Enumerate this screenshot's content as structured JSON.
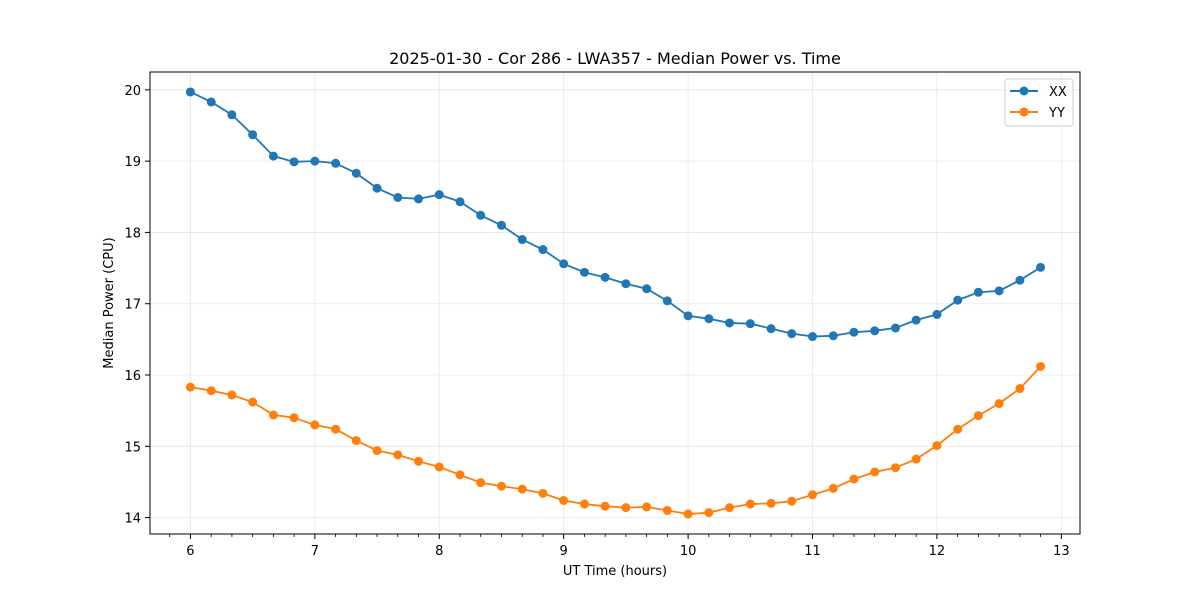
{
  "chart_data": {
    "type": "line",
    "title": "2025-01-30 - Cor 286 - LWA357 - Median Power vs. Time",
    "xlabel": "UT Time (hours)",
    "ylabel": "Median Power (CPU)",
    "xlim": [
      5.675,
      13.15
    ],
    "ylim": [
      13.77,
      20.25
    ],
    "xticks": [
      6,
      7,
      8,
      9,
      10,
      11,
      12,
      13
    ],
    "xtick_labels": [
      "6",
      "7",
      "8",
      "9",
      "10",
      "11",
      "12",
      "13"
    ],
    "yticks": [
      14,
      15,
      16,
      17,
      18,
      19,
      20
    ],
    "ytick_labels": [
      "14",
      "15",
      "16",
      "17",
      "18",
      "19",
      "20"
    ],
    "grid": true,
    "legend_position": "top-right",
    "x": [
      6.0,
      6.167,
      6.333,
      6.5,
      6.667,
      6.833,
      7.0,
      7.167,
      7.333,
      7.5,
      7.667,
      7.833,
      8.0,
      8.167,
      8.333,
      8.5,
      8.667,
      8.833,
      9.0,
      9.167,
      9.333,
      9.5,
      9.667,
      9.833,
      10.0,
      10.167,
      10.333,
      10.5,
      10.667,
      10.833,
      11.0,
      11.167,
      11.333,
      11.5,
      11.667,
      11.833,
      12.0,
      12.167,
      12.333,
      12.5,
      12.667,
      12.833
    ],
    "series": [
      {
        "name": "XX",
        "color": "#1f77b4",
        "values": [
          19.97,
          19.83,
          19.65,
          19.37,
          19.07,
          18.99,
          19.0,
          18.97,
          18.83,
          18.62,
          18.49,
          18.47,
          18.53,
          18.43,
          18.24,
          18.1,
          17.9,
          17.76,
          17.56,
          17.44,
          17.37,
          17.28,
          17.21,
          17.04,
          16.83,
          16.79,
          16.73,
          16.72,
          16.65,
          16.58,
          16.54,
          16.55,
          16.6,
          16.62,
          16.66,
          16.77,
          16.85,
          17.05,
          17.16,
          17.18,
          17.33,
          17.51
        ]
      },
      {
        "name": "YY",
        "color": "#ff7f0e",
        "values": [
          15.83,
          15.78,
          15.72,
          15.62,
          15.44,
          15.4,
          15.3,
          15.24,
          15.08,
          14.94,
          14.88,
          14.79,
          14.71,
          14.6,
          14.49,
          14.44,
          14.4,
          14.34,
          14.24,
          14.19,
          14.16,
          14.14,
          14.15,
          14.1,
          14.05,
          14.07,
          14.14,
          14.19,
          14.2,
          14.23,
          14.32,
          14.41,
          14.54,
          14.64,
          14.7,
          14.82,
          15.01,
          15.24,
          15.43,
          15.6,
          15.81,
          16.12
        ]
      }
    ]
  }
}
